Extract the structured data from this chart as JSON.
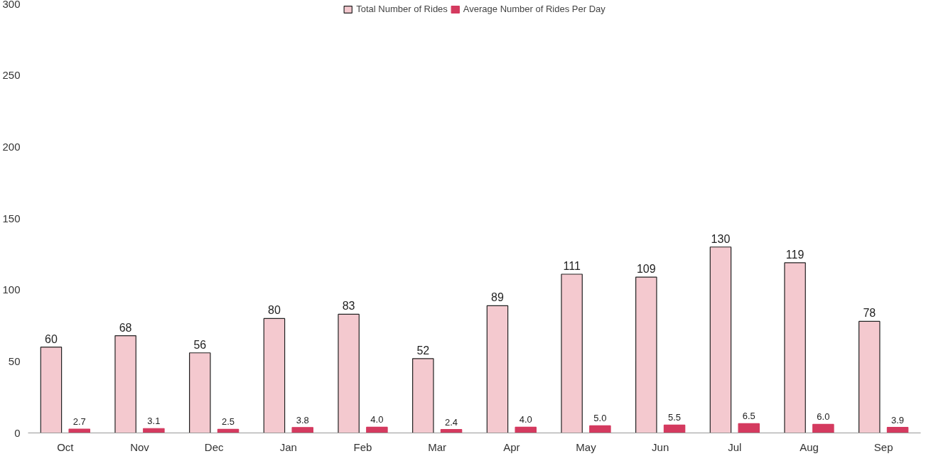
{
  "chart_data": {
    "type": "bar",
    "categories": [
      "Oct",
      "Nov",
      "Dec",
      "Jan",
      "Feb",
      "Mar",
      "Apr",
      "May",
      "Jun",
      "Jul",
      "Aug",
      "Sep"
    ],
    "series": [
      {
        "name": "Total Number of Rides",
        "color": "#f4c9cf",
        "values": [
          60,
          68,
          56,
          80,
          83,
          52,
          89,
          111,
          109,
          130,
          119,
          78
        ]
      },
      {
        "name": "Average Number of Rides Per Day",
        "color": "#d43a5f",
        "values": [
          2.7,
          3.1,
          2.5,
          3.8,
          4.0,
          2.4,
          4.0,
          5.0,
          5.5,
          6.5,
          6.0,
          3.9
        ],
        "value_labels": [
          "2.7",
          "3.1",
          "2.5",
          "3.8",
          "4.0",
          "2.4",
          "4.0",
          "5.0",
          "5.5",
          "6.5",
          "6.0",
          "3.9"
        ]
      }
    ],
    "ylim": [
      0,
      300
    ],
    "yticks": [
      0,
      50,
      100,
      150,
      200,
      250,
      300
    ],
    "data_labels": true,
    "grid": false,
    "legend": "top"
  }
}
